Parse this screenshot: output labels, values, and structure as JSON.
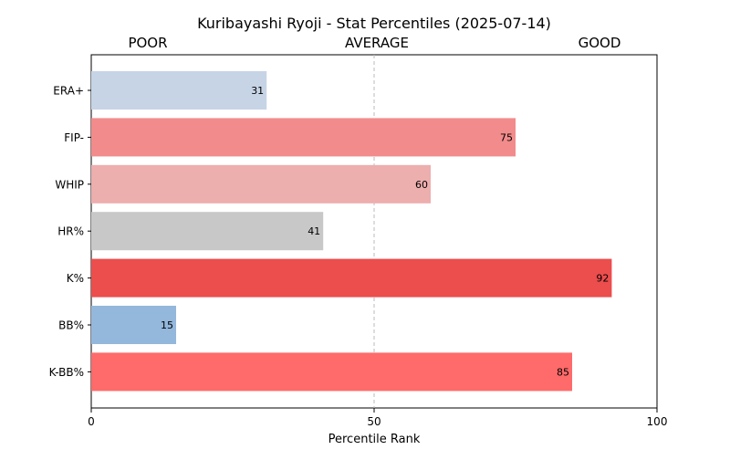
{
  "chart_data": {
    "type": "bar",
    "orientation": "horizontal",
    "title": "Kuribayashi Ryoji - Stat Percentiles (2025-07-14)",
    "xlabel": "Percentile Rank",
    "ylabel": "",
    "xlim": [
      0,
      100
    ],
    "xticks": [
      0,
      50,
      100
    ],
    "reference_line": 50,
    "zone_labels": [
      {
        "text": "POOR",
        "position": "left"
      },
      {
        "text": "AVERAGE",
        "position": "center"
      },
      {
        "text": "GOOD",
        "position": "right"
      }
    ],
    "categories": [
      "ERA+",
      "FIP-",
      "WHIP",
      "HR%",
      "K%",
      "BB%",
      "K-BB%"
    ],
    "values": [
      31,
      75,
      60,
      41,
      92,
      15,
      85
    ],
    "bar_colors": [
      "#c6d4e6",
      "#f28b8b",
      "#edaeae",
      "#c8c8c8",
      "#ec4d4d",
      "#94b7dc",
      "#ff6a6a"
    ],
    "grid": false
  }
}
